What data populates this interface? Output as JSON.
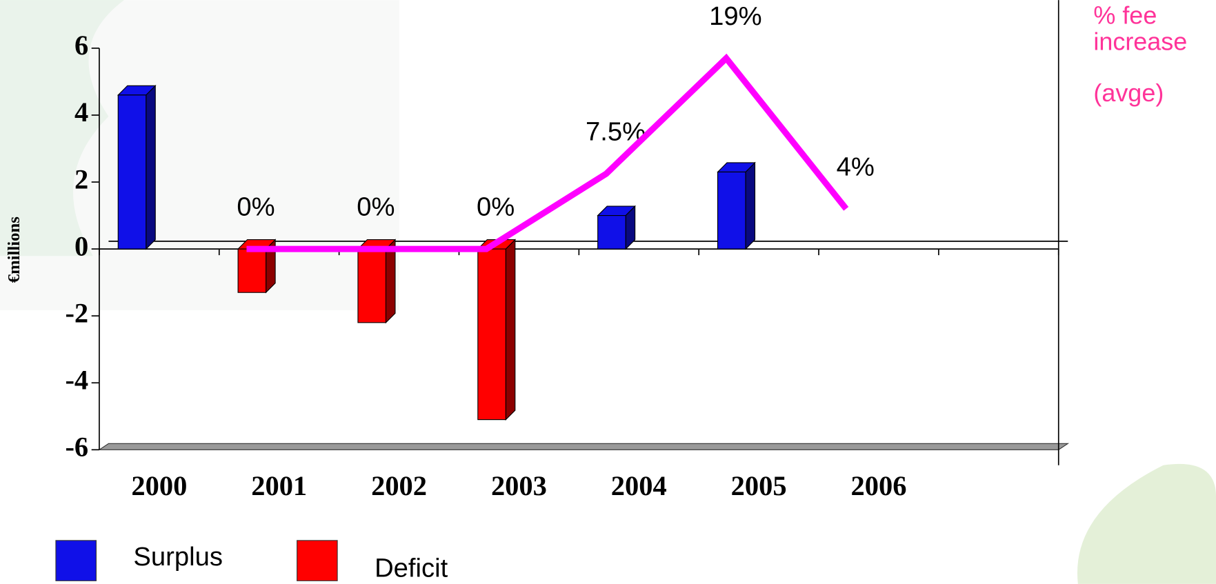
{
  "chart_data": {
    "type": "bar",
    "categories": [
      "2000",
      "2001",
      "2002",
      "2003",
      "2004",
      "2005",
      "2006",
      null
    ],
    "ylabel": "€millions",
    "ylim": [
      -6,
      6
    ],
    "yticks": [
      -6,
      -4,
      -2,
      0,
      2,
      4,
      6
    ],
    "y2lim": [
      -20,
      20
    ],
    "y2_label": [
      "% fee",
      "increase",
      "(avge)"
    ],
    "series": [
      {
        "name": "Surplus",
        "color": "#1010e8",
        "values": [
          4.6,
          null,
          null,
          null,
          1.0,
          2.3,
          null,
          null
        ]
      },
      {
        "name": "Deficit",
        "color": "#ff0000",
        "values": [
          null,
          -1.3,
          -2.2,
          -5.1,
          null,
          null,
          null,
          null
        ]
      },
      {
        "type": "line",
        "axis": "y2",
        "color": "#ff00ff",
        "values": [
          null,
          0,
          0,
          0,
          7.5,
          19,
          4,
          null
        ],
        "value_labels": [
          null,
          "0%",
          "0%",
          "0%",
          "7.5%",
          "19%",
          "4%",
          null
        ]
      }
    ]
  }
}
